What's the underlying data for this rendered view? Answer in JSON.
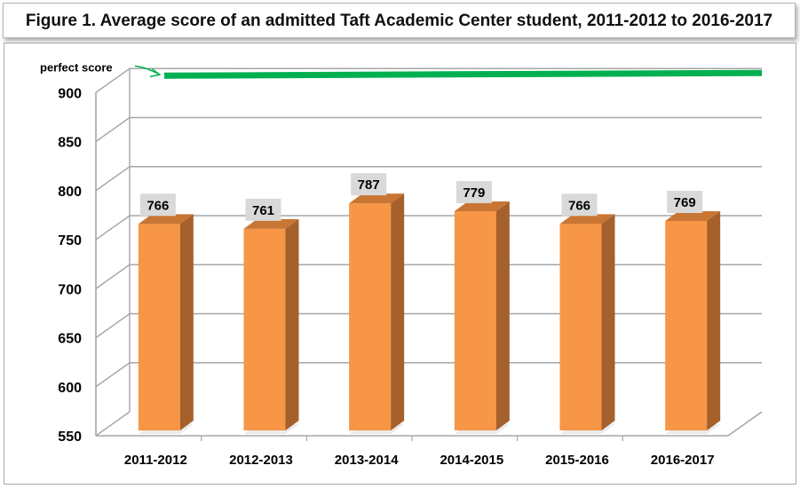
{
  "chart_data": {
    "type": "bar",
    "title": "Figure 1. Average score of an admitted Taft Academic Center student, 2011-2012 to 2016-2017",
    "categories": [
      "2011-2012",
      "2012-2013",
      "2013-2014",
      "2014-2015",
      "2015-2016",
      "2016-2017"
    ],
    "series": [
      {
        "values": [
          766,
          761,
          787,
          779,
          766,
          769
        ]
      }
    ],
    "data_labels": [
      "766",
      "761",
      "787",
      "779",
      "766",
      "769"
    ],
    "y_ticks": [
      550,
      600,
      650,
      700,
      750,
      800,
      850,
      900
    ],
    "ylim": [
      550,
      900
    ],
    "xlabel": "",
    "ylabel": "",
    "grid": true,
    "style": "3d-columns",
    "reference_line": {
      "label": "perfect score",
      "color": "#00b050"
    },
    "colors": {
      "bar_front": "#f79646",
      "bar_side": "#a5602b",
      "bar_top": "#c97634",
      "data_label_bg": "#d9d9d9",
      "grid": "#a6a6a6"
    }
  }
}
